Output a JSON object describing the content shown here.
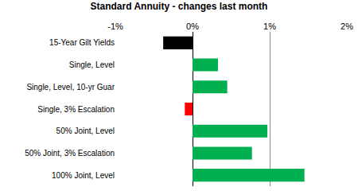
{
  "chart_data": {
    "type": "bar",
    "title": "Standard Annuity - changes last month",
    "orientation": "horizontal",
    "categories": [
      "15-Year Gilt Yields",
      "Single, Level",
      "Single, Level, 10-yr Guar",
      "Single, 3% Escalation",
      "50% Joint, Level",
      "50% Joint, 3% Escalation",
      "100% Joint, Level"
    ],
    "values": [
      -0.38,
      0.33,
      0.45,
      -0.1,
      0.97,
      0.77,
      1.45
    ],
    "colors": [
      "#000000",
      "#00b050",
      "#00b050",
      "#ff0000",
      "#00b050",
      "#00b050",
      "#00b050"
    ],
    "xlim": [
      -1,
      2
    ],
    "xticks": [
      {
        "value": -1,
        "label": "-1%"
      },
      {
        "value": 0,
        "label": "0%"
      },
      {
        "value": 1,
        "label": "1%"
      },
      {
        "value": 2,
        "label": "2%"
      }
    ],
    "grid": true
  }
}
